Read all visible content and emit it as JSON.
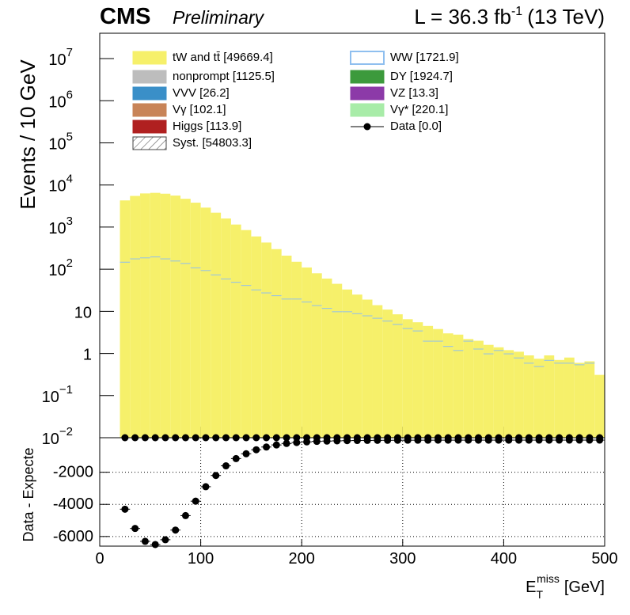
{
  "chart_data": {
    "type": "stacked-histogram",
    "title": "CMS",
    "subtitle": "Preliminary",
    "lumi": "L = 36.3 fb",
    "lumi_sup": "-1",
    "lumi_tail": "(13 TeV)",
    "ylabel": "Events / 10 GeV",
    "xlabel": "E",
    "xlabel_sub": "T",
    "xlabel_sup": "miss",
    "xlabel_unit": "[GeV]",
    "log_y": true,
    "xlim": [
      0,
      500
    ],
    "xticks": [
      0,
      100,
      200,
      300,
      400,
      500
    ],
    "ylim": [
      0.01,
      40000000
    ],
    "yticks": [
      {
        "value": 10000000,
        "label": "10",
        "exp": "7"
      },
      {
        "value": 1000000,
        "label": "10",
        "exp": "6"
      },
      {
        "value": 100000,
        "label": "10",
        "exp": "5"
      },
      {
        "value": 10000,
        "label": "10",
        "exp": "4"
      },
      {
        "value": 1000,
        "label": "10",
        "exp": "3"
      },
      {
        "value": 100,
        "label": "10",
        "exp": "2"
      },
      10,
      1,
      {
        "value": 0.1,
        "label": "10",
        "exp": "−1"
      },
      {
        "value": 0.01,
        "label": "10",
        "exp": "−2"
      }
    ],
    "bins": [
      20,
      30,
      40,
      50,
      60,
      70,
      80,
      90,
      100,
      110,
      120,
      130,
      140,
      150,
      160,
      170,
      180,
      190,
      200,
      210,
      220,
      230,
      240,
      250,
      260,
      270,
      280,
      290,
      300,
      310,
      320,
      330,
      340,
      350,
      360,
      370,
      380,
      390,
      400,
      410,
      420,
      430,
      440,
      450,
      460,
      470,
      480,
      490,
      500
    ],
    "series": [
      {
        "name": "WW [1721.9]",
        "color": "#8fbfef",
        "values": [
          150,
          180,
          190,
          200,
          180,
          160,
          140,
          110,
          95,
          75,
          60,
          50,
          42,
          33,
          28,
          24,
          20,
          20,
          17,
          14,
          12,
          10,
          10,
          9,
          8,
          7,
          6,
          5,
          4,
          3.5,
          2,
          2,
          1.5,
          1.2,
          2,
          1.3,
          1,
          1.2,
          1,
          0.8,
          0.6,
          0.5,
          0.7,
          0.6,
          0.6,
          0.55,
          0.6,
          0.01
        ]
      },
      {
        "name": "tW and tt̄ [49669.4]",
        "color": "#f6f06a",
        "values": [
          4150,
          5320,
          6110,
          6300,
          6020,
          5440,
          4560,
          3690,
          2805,
          2125,
          1540,
          1100,
          808,
          567,
          402,
          276,
          190,
          130,
          93,
          66,
          48,
          35,
          23,
          16,
          11,
          7,
          5,
          3.5,
          2.5,
          2,
          2.5,
          1.8,
          1.5,
          1.6,
          0.2,
          0.7,
          0.6,
          0.2,
          0.2,
          0.3,
          0.3,
          0.25,
          0.2,
          0.1,
          0.2,
          0.05,
          0.05,
          0.3
        ]
      },
      {
        "name": "nonprompt [1125.5]",
        "color": "#bdbdbd"
      },
      {
        "name": "DY [1924.7]",
        "color": "#3c9a3c"
      },
      {
        "name": "VVV [26.2]",
        "color": "#3a8fc8"
      },
      {
        "name": "VZ [13.3]",
        "color": "#8c3aa8"
      },
      {
        "name": "Vγ [102.1]",
        "color": "#c88458"
      },
      {
        "name": "Vγ* [220.1]",
        "color": "#a8eca8"
      },
      {
        "name": "Higgs [113.9]",
        "color": "#b02020"
      },
      {
        "name": "Syst. [54803.3]",
        "color": "#444444"
      }
    ],
    "data": {
      "name": "Data [0.0]",
      "color": "#000000",
      "values": [
        0,
        0,
        0,
        0,
        0,
        0,
        0,
        0,
        0,
        0,
        0,
        0,
        0,
        0,
        0,
        0,
        0,
        0,
        0,
        0,
        0,
        0,
        0,
        0,
        0,
        0,
        0,
        0,
        0,
        0,
        0,
        0,
        0,
        0,
        0,
        0,
        0,
        0,
        0,
        0,
        0,
        0,
        0,
        0,
        0,
        0,
        0,
        0
      ]
    },
    "ratio": {
      "ylabel": "Data - Expecte",
      "ylim": [
        -6600,
        150
      ],
      "yticks": [
        -2000,
        -4000,
        -6000
      ],
      "grid": true,
      "values": [
        -4300,
        -5500,
        -6300,
        -6500,
        -6200,
        -5600,
        -4700,
        -3800,
        -2900,
        -2200,
        -1600,
        -1150,
        -850,
        -600,
        -430,
        -300,
        -210,
        -150,
        -110,
        -80,
        -60,
        -45,
        -33,
        -25,
        -19,
        -14,
        -11,
        -8.5,
        -6.5,
        -5.5,
        -4.5,
        -3.8,
        -3,
        -2.8,
        -2.2,
        -2,
        -1.6,
        -1.4,
        -1.2,
        -1.1,
        -0.9,
        -0.75,
        -0.9,
        -0.7,
        -0.8,
        -0.55,
        -0.65,
        -0.3
      ]
    }
  }
}
